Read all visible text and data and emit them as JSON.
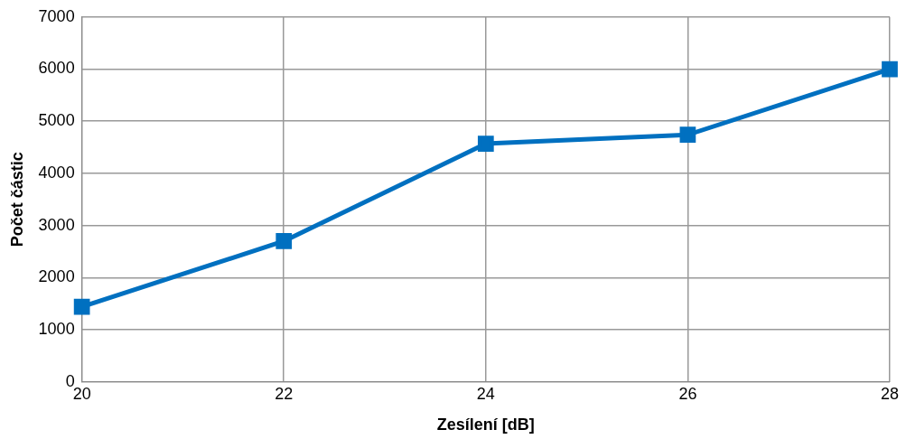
{
  "chart_data": {
    "type": "line",
    "xlabel": "Zesílení [dB]",
    "ylabel": "Počet částic",
    "x": [
      20,
      22,
      24,
      26,
      28
    ],
    "series": [
      {
        "color": "#0070c0",
        "values": [
          1440,
          2700,
          4570,
          4740,
          6000
        ]
      }
    ],
    "xlim": [
      20,
      28
    ],
    "xticks": [
      20,
      22,
      24,
      26,
      28
    ],
    "ylim": [
      0,
      7000
    ],
    "yticks": [
      0,
      1000,
      2000,
      3000,
      4000,
      5000,
      6000,
      7000
    ],
    "grid": true,
    "legend": false,
    "marker": "square",
    "line_style": "solid"
  }
}
